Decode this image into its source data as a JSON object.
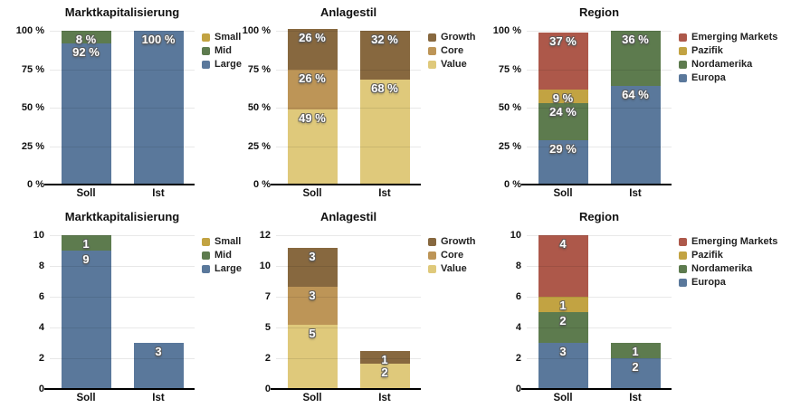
{
  "page": {
    "background": "#ffffff"
  },
  "x_axis_categories": [
    "Soll",
    "Ist"
  ],
  "palette": {
    "large_europa_blue": "#5A789B",
    "mid_nordamerika_green": "#5D7B4E",
    "small_pazifik_gold": "#C2A342",
    "emerging_markets_red": "#AD584A",
    "value_light_tan": "#DFC97B",
    "core_tan": "#BD9557",
    "growth_brown": "#87683F",
    "gridline": "#E8E8E8",
    "axis_line": "#000000",
    "bar_label_text": "#FFFFFF"
  },
  "chart_data": [
    {
      "id": "marktkapitalisierung-percent",
      "type": "bar",
      "stacked": true,
      "grid": true,
      "legend_position": "right",
      "title": "Marktkapitalisierung",
      "categories": [
        "Soll",
        "Ist"
      ],
      "xlabel": "",
      "ylabel": "",
      "ylim": [
        0,
        100
      ],
      "value_suffix": " %",
      "yticks": [
        {
          "pos": 0,
          "label": "0 %"
        },
        {
          "pos": 25,
          "label": "25 %"
        },
        {
          "pos": 50,
          "label": "50 %"
        },
        {
          "pos": 75,
          "label": "75 %"
        },
        {
          "pos": 100,
          "label": "100 %"
        }
      ],
      "series": [
        {
          "name": "Small",
          "color": "#C2A342",
          "values": [
            0,
            0
          ]
        },
        {
          "name": "Mid",
          "color": "#5D7B4E",
          "values": [
            8,
            0
          ]
        },
        {
          "name": "Large",
          "color": "#5A789B",
          "values": [
            92,
            100
          ]
        }
      ]
    },
    {
      "id": "anlagestil-percent",
      "type": "bar",
      "stacked": true,
      "grid": true,
      "legend_position": "right",
      "title": "Anlagestil",
      "categories": [
        "Soll",
        "Ist"
      ],
      "xlabel": "",
      "ylabel": "",
      "ylim": [
        0,
        100
      ],
      "value_suffix": " %",
      "yticks": [
        {
          "pos": 0,
          "label": "0 %"
        },
        {
          "pos": 25,
          "label": "25 %"
        },
        {
          "pos": 50,
          "label": "50 %"
        },
        {
          "pos": 75,
          "label": "75 %"
        },
        {
          "pos": 100,
          "label": "100 %"
        }
      ],
      "series": [
        {
          "name": "Growth",
          "color": "#87683F",
          "values": [
            26,
            32
          ]
        },
        {
          "name": "Core",
          "color": "#BD9557",
          "values": [
            26,
            0
          ]
        },
        {
          "name": "Value",
          "color": "#DFC97B",
          "values": [
            49,
            68
          ]
        }
      ]
    },
    {
      "id": "region-percent",
      "type": "bar",
      "stacked": true,
      "grid": true,
      "legend_position": "right",
      "title": "Region",
      "categories": [
        "Soll",
        "Ist"
      ],
      "xlabel": "",
      "ylabel": "",
      "ylim": [
        0,
        100
      ],
      "value_suffix": " %",
      "yticks": [
        {
          "pos": 0,
          "label": "0 %"
        },
        {
          "pos": 25,
          "label": "25 %"
        },
        {
          "pos": 50,
          "label": "50 %"
        },
        {
          "pos": 75,
          "label": "75 %"
        },
        {
          "pos": 100,
          "label": "100 %"
        }
      ],
      "series": [
        {
          "name": "Emerging Markets",
          "color": "#AD584A",
          "values": [
            37,
            0
          ]
        },
        {
          "name": "Pazifik",
          "color": "#C2A342",
          "values": [
            9,
            0
          ]
        },
        {
          "name": "Nordamerika",
          "color": "#5D7B4E",
          "values": [
            24,
            36
          ]
        },
        {
          "name": "Europa",
          "color": "#5A789B",
          "values": [
            29,
            64
          ]
        }
      ]
    },
    {
      "id": "marktkapitalisierung-count",
      "type": "bar",
      "stacked": true,
      "grid": true,
      "legend_position": "right",
      "title": "Marktkapitalisierung",
      "categories": [
        "Soll",
        "Ist"
      ],
      "xlabel": "",
      "ylabel": "",
      "ylim": [
        0,
        10
      ],
      "value_suffix": "",
      "yticks": [
        {
          "pos": 0,
          "label": "0"
        },
        {
          "pos": 2,
          "label": "2"
        },
        {
          "pos": 4,
          "label": "4"
        },
        {
          "pos": 6,
          "label": "6"
        },
        {
          "pos": 8,
          "label": "8"
        },
        {
          "pos": 10,
          "label": "10"
        }
      ],
      "series": [
        {
          "name": "Small",
          "color": "#C2A342",
          "values": [
            0,
            0
          ]
        },
        {
          "name": "Mid",
          "color": "#5D7B4E",
          "values": [
            1,
            0
          ]
        },
        {
          "name": "Large",
          "color": "#5A789B",
          "values": [
            9,
            3
          ]
        }
      ]
    },
    {
      "id": "anlagestil-count",
      "type": "bar",
      "stacked": true,
      "grid": true,
      "legend_position": "right",
      "title": "Anlagestil",
      "categories": [
        "Soll",
        "Ist"
      ],
      "xlabel": "",
      "ylabel": "",
      "ylim": [
        0,
        12
      ],
      "value_suffix": "",
      "yticks": [
        {
          "pos": 0,
          "label": "0"
        },
        {
          "pos": 2.4,
          "label": "2"
        },
        {
          "pos": 4.8,
          "label": "5"
        },
        {
          "pos": 7.2,
          "label": "7"
        },
        {
          "pos": 9.6,
          "label": "10"
        },
        {
          "pos": 12,
          "label": "12"
        }
      ],
      "series": [
        {
          "name": "Growth",
          "color": "#87683F",
          "values": [
            3,
            1
          ]
        },
        {
          "name": "Core",
          "color": "#BD9557",
          "values": [
            3,
            0
          ]
        },
        {
          "name": "Value",
          "color": "#DFC97B",
          "values": [
            5,
            2
          ]
        }
      ]
    },
    {
      "id": "region-count",
      "type": "bar",
      "stacked": true,
      "grid": true,
      "legend_position": "right",
      "title": "Region",
      "categories": [
        "Soll",
        "Ist"
      ],
      "xlabel": "",
      "ylabel": "",
      "ylim": [
        0,
        10
      ],
      "value_suffix": "",
      "yticks": [
        {
          "pos": 0,
          "label": "0"
        },
        {
          "pos": 2,
          "label": "2"
        },
        {
          "pos": 4,
          "label": "4"
        },
        {
          "pos": 6,
          "label": "6"
        },
        {
          "pos": 8,
          "label": "8"
        },
        {
          "pos": 10,
          "label": "10"
        }
      ],
      "series": [
        {
          "name": "Emerging Markets",
          "color": "#AD584A",
          "values": [
            4,
            0
          ]
        },
        {
          "name": "Pazifik",
          "color": "#C2A342",
          "values": [
            1,
            0
          ]
        },
        {
          "name": "Nordamerika",
          "color": "#5D7B4E",
          "values": [
            2,
            1
          ]
        },
        {
          "name": "Europa",
          "color": "#5A789B",
          "values": [
            3,
            2
          ]
        }
      ]
    }
  ]
}
